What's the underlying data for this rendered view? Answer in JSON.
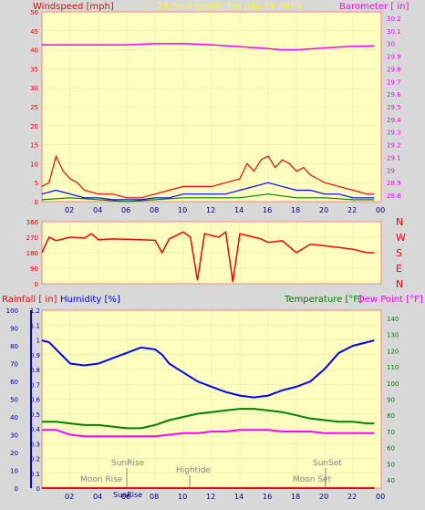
{
  "chart_data": [
    {
      "type": "line",
      "panel": "wind-baro",
      "title": "24 hour graph day   July 29 2019",
      "ylabel_left": "Windspeed [mph]",
      "ylabel_right": "Barometer [ in]",
      "x_ticks": [
        "02",
        "04",
        "06",
        "08",
        "10",
        "12",
        "14",
        "16",
        "18",
        "20",
        "22",
        "00"
      ],
      "y_left_ticks": [
        "0",
        "5",
        "10",
        "15",
        "20",
        "25",
        "30",
        "35",
        "40",
        "45",
        "50"
      ],
      "y_left_range": [
        0,
        50
      ],
      "y_right_ticks": [
        "28.8",
        "28.9",
        "29",
        "29.1",
        "29.2",
        "29.3",
        "29.4",
        "29.5",
        "29.6",
        "29.7",
        "29.8",
        "29.9",
        "30",
        "30.1",
        "30.2"
      ],
      "y_right_range": [
        28.75,
        30.25
      ],
      "series": [
        {
          "key": "barometer",
          "axis": "right",
          "color": "#ff00ff",
          "x": [
            0,
            2,
            4,
            6,
            8,
            10,
            12,
            14,
            16,
            17,
            18,
            20,
            22,
            23.5
          ],
          "y": [
            29.99,
            29.99,
            29.99,
            29.99,
            29.998,
            30,
            29.99,
            29.975,
            29.96,
            29.95,
            29.95,
            29.965,
            29.978,
            29.98
          ]
        },
        {
          "key": "wind-gust",
          "axis": "left",
          "color": "#ff0000",
          "x": [
            0,
            0.5,
            1,
            1.5,
            2,
            2.5,
            3,
            4,
            5,
            6,
            7,
            8,
            9,
            10,
            11,
            12,
            13,
            14,
            14.5,
            15,
            15.5,
            16,
            16.5,
            17,
            17.5,
            18,
            18.5,
            19,
            19.5,
            20,
            21,
            22,
            23,
            23.5
          ],
          "y": [
            4,
            5,
            12,
            8,
            6,
            5,
            3,
            2,
            2,
            1,
            1,
            2,
            3,
            4,
            4,
            4,
            5,
            6,
            10,
            8,
            11,
            12,
            9,
            11,
            10,
            8,
            9,
            7,
            6,
            5,
            4,
            3,
            2,
            2
          ]
        },
        {
          "key": "wind-avg",
          "axis": "left",
          "color": "#0000ff",
          "x": [
            0,
            1,
            2,
            3,
            4,
            5,
            6,
            7,
            8,
            9,
            10,
            11,
            12,
            13,
            14,
            15,
            16,
            17,
            18,
            19,
            20,
            21,
            22,
            23,
            23.5
          ],
          "y": [
            2,
            3,
            2,
            1,
            1,
            0.5,
            0.5,
            0.5,
            1,
            1,
            2,
            2,
            2,
            2,
            3,
            4,
            5,
            4,
            3,
            3,
            2,
            2,
            1,
            1,
            1
          ]
        },
        {
          "key": "wind-min",
          "axis": "left",
          "color": "#008000",
          "x": [
            0,
            2,
            4,
            6,
            8,
            10,
            12,
            14,
            16,
            18,
            20,
            22,
            23.5
          ],
          "y": [
            0.5,
            1,
            0.5,
            0,
            0.5,
            1,
            1,
            1,
            2,
            1,
            1,
            0.5,
            0.5
          ]
        }
      ]
    },
    {
      "type": "line",
      "panel": "wind-direction",
      "y_left_ticks": [
        "0",
        "90",
        "180",
        "270",
        "360"
      ],
      "y_left_range": [
        0,
        360
      ],
      "y_right_labels": [
        "N",
        "W",
        "S",
        "E",
        "N"
      ],
      "series": [
        {
          "key": "wind-direction",
          "color": "#ff0000",
          "x": [
            0,
            0.5,
            1,
            2,
            3,
            3.5,
            4,
            5,
            6,
            7,
            8,
            8.5,
            9,
            9.5,
            10,
            10.5,
            11,
            11.5,
            12,
            12.5,
            13,
            13.5,
            14,
            14.5,
            15,
            15.5,
            16,
            17,
            18,
            19,
            20,
            21,
            22,
            23,
            23.5
          ],
          "y": [
            180,
            270,
            250,
            270,
            265,
            290,
            255,
            260,
            258,
            255,
            252,
            180,
            260,
            280,
            300,
            270,
            20,
            290,
            280,
            270,
            300,
            10,
            290,
            280,
            270,
            260,
            240,
            250,
            180,
            230,
            220,
            210,
            200,
            180,
            180
          ]
        }
      ]
    },
    {
      "type": "line",
      "panel": "rain-humidity-temp",
      "ylabel_rain": "Rainfall [ in]",
      "ylabel_humidity": "Humidity [%]",
      "ylabel_temp": "Temperature [°F]",
      "ylabel_dew": "Dew Point [°F]",
      "y_rain_ticks": [
        "0",
        "0.1",
        "0.2",
        "0.3",
        "0.4",
        "0.5",
        "0.6",
        "0.7",
        "0.8",
        "0.9",
        "1",
        "1.1",
        "1.2"
      ],
      "y_rain_range": [
        0,
        1.2
      ],
      "y_humidity_ticks": [
        "0",
        "10",
        "20",
        "30",
        "40",
        "50",
        "60",
        "70",
        "80",
        "90",
        "100"
      ],
      "y_humidity_range": [
        0,
        100
      ],
      "y_temp_ticks": [
        "40",
        "50",
        "60",
        "70",
        "80",
        "90",
        "100",
        "110",
        "120",
        "130",
        "140"
      ],
      "y_temp_range": [
        35,
        145
      ],
      "annotations": {
        "sunrise": "SunRise",
        "sunset": "SunSet",
        "moonrise": "Moon Rise",
        "moonset": "Moon Set",
        "hightide": "Hightide",
        "sunrise_label2": "SunRise"
      },
      "series": [
        {
          "key": "humidity",
          "axis": "humidity",
          "color": "#0000ff",
          "x": [
            0,
            0.5,
            1,
            2,
            3,
            4,
            5,
            6,
            7,
            8,
            8.5,
            9,
            10,
            11,
            12,
            13,
            14,
            15,
            16,
            17,
            18,
            19,
            20,
            21,
            22,
            23,
            23.5
          ],
          "y": [
            83,
            82,
            78,
            70,
            69,
            70,
            73,
            76,
            79,
            78,
            75,
            70,
            65,
            60,
            57,
            54,
            52,
            51,
            52,
            55,
            57,
            60,
            67,
            76,
            80,
            82,
            83
          ]
        },
        {
          "key": "temperature",
          "axis": "temp",
          "color": "#008000",
          "x": [
            0,
            1,
            2,
            3,
            4,
            5,
            6,
            7,
            8,
            9,
            10,
            11,
            12,
            13,
            14,
            15,
            16,
            17,
            18,
            19,
            20,
            21,
            22,
            23,
            23.5
          ],
          "y": [
            76,
            76,
            75,
            74,
            74,
            73,
            72,
            72,
            74,
            77,
            79,
            81,
            82,
            83,
            84,
            84,
            83,
            82,
            80,
            78,
            77,
            76,
            76,
            75,
            75
          ]
        },
        {
          "key": "dew-point",
          "axis": "temp",
          "color": "#ff00ff",
          "x": [
            0,
            1,
            2,
            3,
            4,
            5,
            6,
            7,
            8,
            9,
            10,
            11,
            12,
            13,
            14,
            15,
            16,
            17,
            18,
            19,
            20,
            21,
            22,
            23,
            23.5
          ],
          "y": [
            71,
            71,
            68,
            67,
            67,
            67,
            67,
            67,
            67,
            68,
            69,
            69,
            70,
            70,
            71,
            71,
            71,
            70,
            70,
            70,
            69,
            69,
            69,
            69,
            69
          ]
        },
        {
          "key": "rainfall",
          "axis": "rain",
          "color": "#ff0000",
          "x": [
            0,
            23.5
          ],
          "y": [
            0,
            0
          ]
        }
      ]
    }
  ]
}
